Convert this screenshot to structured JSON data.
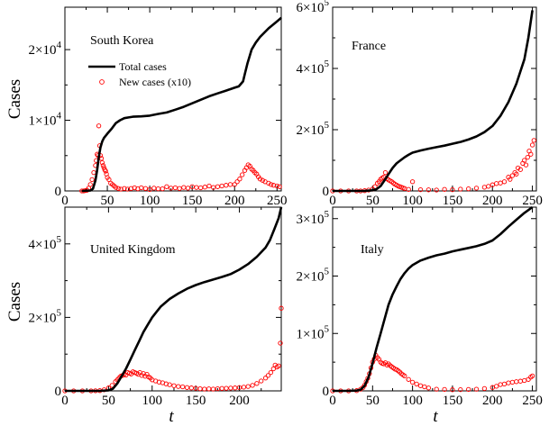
{
  "legend": {
    "total_label": "Total cases",
    "new_label": "New cases (x10)"
  },
  "colors": {
    "total": "#000000",
    "new": "#ff0000"
  },
  "chart_data": [
    {
      "type": "line",
      "title": "South Korea",
      "ylabel": "Cases",
      "xlabel": "",
      "xlim": [
        0,
        255
      ],
      "ylim": [
        0,
        26000
      ],
      "xticks": [
        "0",
        "50",
        "100",
        "150",
        "200",
        "250"
      ],
      "yticks": [
        {
          "v": 0,
          "m": "0",
          "e": ""
        },
        {
          "v": 10000,
          "m": "1×10",
          "e": "4"
        },
        {
          "v": 20000,
          "m": "2×10",
          "e": "4"
        }
      ],
      "series": [
        {
          "name": "Total cases",
          "style": "line",
          "x": [
            20,
            30,
            33,
            36,
            38,
            40,
            42,
            44,
            46,
            48,
            50,
            55,
            60,
            65,
            70,
            75,
            80,
            90,
            100,
            110,
            120,
            130,
            140,
            150,
            160,
            170,
            180,
            190,
            195,
            200,
            205,
            210,
            212,
            215,
            220,
            225,
            230,
            240,
            250,
            255
          ],
          "y": [
            1,
            50,
            300,
            1500,
            3000,
            4800,
            6200,
            7000,
            7500,
            7800,
            8100,
            8800,
            9600,
            10000,
            10300,
            10400,
            10500,
            10550,
            10650,
            10900,
            11100,
            11500,
            11900,
            12400,
            12900,
            13400,
            13800,
            14200,
            14400,
            14600,
            14800,
            15500,
            16500,
            18000,
            20000,
            21000,
            21800,
            23000,
            24000,
            24500
          ]
        },
        {
          "name": "New cases (x10)",
          "style": "markers",
          "x": [
            20,
            22,
            24,
            26,
            28,
            30,
            32,
            34,
            36,
            37,
            38,
            39,
            40,
            41,
            42,
            43,
            44,
            45,
            46,
            47,
            48,
            49,
            50,
            52,
            54,
            56,
            58,
            60,
            63,
            66,
            70,
            74,
            78,
            82,
            86,
            90,
            95,
            100,
            105,
            110,
            115,
            120,
            125,
            130,
            135,
            140,
            145,
            150,
            155,
            160,
            165,
            170,
            175,
            180,
            185,
            190,
            195,
            200,
            203,
            206,
            209,
            212,
            214,
            216,
            218,
            220,
            222,
            224,
            226,
            228,
            230,
            233,
            236,
            240,
            243,
            246,
            250,
            253
          ],
          "y": [
            0,
            0,
            50,
            100,
            400,
            900,
            1600,
            2600,
            3600,
            4300,
            5200,
            5000,
            9200,
            6400,
            5000,
            4600,
            4000,
            3600,
            3300,
            3000,
            2800,
            2400,
            1900,
            1600,
            1100,
            900,
            700,
            500,
            350,
            250,
            350,
            250,
            350,
            450,
            300,
            450,
            350,
            200,
            400,
            300,
            300,
            600,
            400,
            450,
            350,
            500,
            400,
            600,
            500,
            450,
            550,
            700,
            500,
            600,
            700,
            800,
            900,
            900,
            1300,
            1700,
            2300,
            2900,
            3300,
            3700,
            3500,
            3100,
            2900,
            2600,
            2400,
            2000,
            1700,
            1500,
            1300,
            1100,
            900,
            800,
            700,
            600
          ]
        }
      ]
    },
    {
      "type": "line",
      "title": "France",
      "ylabel": "",
      "xlabel": "",
      "xlim": [
        0,
        255
      ],
      "ylim": [
        0,
        600000
      ],
      "xticks": [
        "0",
        "50",
        "100",
        "150",
        "200",
        "250"
      ],
      "yticks": [
        {
          "v": 0,
          "m": "0",
          "e": ""
        },
        {
          "v": 200000,
          "m": "2×10",
          "e": "5"
        },
        {
          "v": 400000,
          "m": "4×10",
          "e": "5"
        },
        {
          "v": 600000,
          "m": "6×10",
          "e": "5"
        }
      ],
      "series": [
        {
          "name": "Total cases",
          "style": "line",
          "x": [
            0,
            30,
            40,
            50,
            55,
            60,
            65,
            70,
            75,
            80,
            85,
            90,
            95,
            100,
            110,
            120,
            130,
            140,
            150,
            160,
            170,
            180,
            190,
            200,
            210,
            220,
            230,
            240,
            245,
            250
          ],
          "y": [
            0,
            10,
            200,
            2000,
            6000,
            16000,
            35000,
            55000,
            75000,
            90000,
            100000,
            110000,
            118000,
            125000,
            132000,
            138000,
            143000,
            148000,
            154000,
            160000,
            168000,
            178000,
            192000,
            212000,
            245000,
            290000,
            350000,
            430000,
            500000,
            590000
          ]
        },
        {
          "name": "New cases (x10)",
          "style": "markers",
          "x": [
            0,
            10,
            20,
            30,
            35,
            40,
            45,
            50,
            53,
            56,
            58,
            60,
            62,
            64,
            66,
            68,
            70,
            72,
            74,
            76,
            78,
            80,
            82,
            84,
            86,
            88,
            90,
            95,
            100,
            110,
            120,
            130,
            140,
            150,
            160,
            170,
            180,
            190,
            195,
            200,
            205,
            210,
            215,
            220,
            222,
            225,
            228,
            230,
            232,
            235,
            238,
            240,
            242,
            244,
            246,
            248,
            250,
            252
          ],
          "y": [
            0,
            0,
            0,
            0,
            100,
            1000,
            3000,
            6000,
            14000,
            25000,
            30000,
            38000,
            42000,
            45000,
            60000,
            40000,
            36000,
            33000,
            30000,
            26000,
            22000,
            19000,
            16000,
            14000,
            12000,
            10000,
            8000,
            5000,
            30000,
            4000,
            3500,
            3000,
            5000,
            4000,
            6000,
            7000,
            9000,
            12000,
            15000,
            20000,
            24000,
            26000,
            30000,
            45000,
            38000,
            50000,
            60000,
            55000,
            75000,
            70000,
            90000,
            100000,
            85000,
            110000,
            130000,
            120000,
            150000,
            165000
          ]
        }
      ]
    },
    {
      "type": "line",
      "title": "United Kingdom",
      "ylabel": "Cases",
      "xlabel": "t",
      "xlim": [
        0,
        248
      ],
      "ylim": [
        0,
        500000
      ],
      "xticks": [
        "0",
        "50",
        "100",
        "150",
        "200"
      ],
      "yticks": [
        {
          "v": 0,
          "m": "0",
          "e": ""
        },
        {
          "v": 200000,
          "m": "2×10",
          "e": "5"
        },
        {
          "v": 400000,
          "m": "4×10",
          "e": "5"
        }
      ],
      "series": [
        {
          "name": "Total cases",
          "style": "line",
          "x": [
            0,
            30,
            40,
            50,
            55,
            60,
            65,
            70,
            75,
            80,
            85,
            90,
            95,
            100,
            105,
            110,
            120,
            130,
            140,
            150,
            160,
            170,
            180,
            190,
            200,
            210,
            220,
            230,
            235,
            240,
            245,
            248
          ],
          "y": [
            0,
            10,
            100,
            1500,
            6000,
            20000,
            40000,
            60000,
            85000,
            110000,
            135000,
            160000,
            180000,
            200000,
            215000,
            230000,
            250000,
            265000,
            278000,
            288000,
            296000,
            303000,
            310000,
            318000,
            330000,
            345000,
            365000,
            390000,
            410000,
            440000,
            470000,
            500000
          ]
        },
        {
          "name": "New cases (x10)",
          "style": "markers",
          "x": [
            0,
            10,
            20,
            30,
            35,
            40,
            45,
            50,
            54,
            58,
            60,
            62,
            64,
            66,
            68,
            70,
            72,
            74,
            76,
            78,
            80,
            82,
            84,
            86,
            88,
            90,
            92,
            94,
            96,
            98,
            100,
            104,
            108,
            112,
            116,
            120,
            125,
            130,
            135,
            140,
            145,
            150,
            155,
            160,
            165,
            170,
            175,
            180,
            185,
            190,
            195,
            200,
            205,
            210,
            215,
            220,
            225,
            230,
            233,
            236,
            239,
            241,
            243,
            245,
            247,
            248
          ],
          "y": [
            0,
            0,
            0,
            0,
            200,
            800,
            3000,
            8000,
            15000,
            25000,
            30000,
            35000,
            40000,
            42000,
            45000,
            43000,
            50000,
            48000,
            46000,
            52000,
            50000,
            48000,
            45000,
            50000,
            42000,
            47000,
            40000,
            45000,
            38000,
            35000,
            30000,
            27000,
            24000,
            22000,
            19000,
            17000,
            14000,
            12000,
            11000,
            9000,
            8000,
            7000,
            6000,
            5000,
            5500,
            5000,
            6000,
            6500,
            7000,
            7500,
            8000,
            9000,
            10000,
            12000,
            15000,
            20000,
            27000,
            35000,
            42000,
            50000,
            60000,
            70000,
            65000,
            68000,
            130000,
            225000
          ]
        }
      ]
    },
    {
      "type": "line",
      "title": "Italy",
      "ylabel": "",
      "xlabel": "t",
      "xlim": [
        0,
        255
      ],
      "ylim": [
        0,
        320000
      ],
      "xticks": [
        "0",
        "50",
        "100",
        "150",
        "200",
        "250"
      ],
      "yticks": [
        {
          "v": 0,
          "m": "0",
          "e": ""
        },
        {
          "v": 100000,
          "m": "1×10",
          "e": "5"
        },
        {
          "v": 200000,
          "m": "2×10",
          "e": "5"
        },
        {
          "v": 300000,
          "m": "3×10",
          "e": "5"
        }
      ],
      "series": [
        {
          "name": "Total cases",
          "style": "line",
          "x": [
            0,
            20,
            30,
            35,
            40,
            45,
            50,
            55,
            60,
            65,
            70,
            75,
            80,
            85,
            90,
            95,
            100,
            110,
            120,
            130,
            140,
            150,
            160,
            170,
            180,
            190,
            200,
            210,
            220,
            230,
            240,
            250
          ],
          "y": [
            0,
            20,
            500,
            2000,
            9000,
            24000,
            48000,
            75000,
            100000,
            125000,
            150000,
            168000,
            182000,
            195000,
            205000,
            213000,
            219000,
            227000,
            232000,
            236000,
            239000,
            243000,
            246000,
            249000,
            252000,
            256000,
            262000,
            273000,
            286000,
            298000,
            310000,
            323000
          ]
        },
        {
          "name": "New cases (x10)",
          "style": "markers",
          "x": [
            0,
            10,
            20,
            30,
            35,
            38,
            40,
            42,
            44,
            46,
            48,
            50,
            52,
            54,
            56,
            58,
            60,
            62,
            64,
            66,
            68,
            70,
            72,
            74,
            76,
            78,
            80,
            82,
            84,
            86,
            88,
            90,
            95,
            100,
            105,
            110,
            115,
            120,
            130,
            140,
            150,
            160,
            170,
            180,
            190,
            200,
            205,
            210,
            215,
            220,
            225,
            230,
            235,
            240,
            245,
            248,
            250
          ],
          "y": [
            0,
            0,
            0,
            500,
            3000,
            6000,
            10000,
            16000,
            22000,
            30000,
            40000,
            50000,
            55000,
            62000,
            58000,
            55000,
            50000,
            48000,
            47000,
            49000,
            45000,
            47000,
            44000,
            42000,
            40000,
            38000,
            37000,
            35000,
            33000,
            30000,
            28000,
            26000,
            20000,
            15000,
            12000,
            9000,
            7000,
            5000,
            3000,
            2500,
            2000,
            2200,
            2500,
            3000,
            4000,
            6000,
            8000,
            11000,
            12000,
            14000,
            15000,
            16000,
            17000,
            18000,
            20000,
            24000,
            26000
          ]
        }
      ]
    }
  ]
}
